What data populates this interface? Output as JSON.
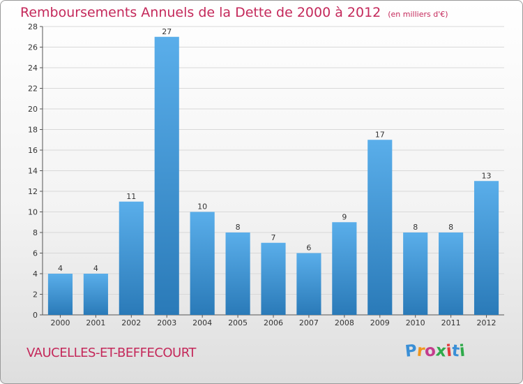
{
  "header": {
    "title": "Remboursements Annuels de la Dette de 2000 à 2012",
    "unit": "(en milliers d'€)"
  },
  "footer": {
    "commune": "VAUCELLES-ET-BEFFECOURT",
    "logo_letters": [
      "P",
      "r",
      "o",
      "x",
      "i",
      "t",
      "i"
    ],
    "logo_colors": [
      "#3a8fd6",
      "#f0961e",
      "#c43c8c",
      "#2faa4a",
      "#e4393c",
      "#3a8fd6",
      "#2faa4a"
    ]
  },
  "colors": {
    "bar_light": "#5aaeea",
    "bar_dark": "#2a7ab8",
    "title": "#c4285a",
    "grid": "#d8d8d8"
  },
  "chart_data": {
    "type": "bar",
    "title": "Remboursements Annuels de la Dette de 2000 à 2012",
    "subtitle": "(en milliers d'€)",
    "categories": [
      "2000",
      "2001",
      "2002",
      "2003",
      "2004",
      "2005",
      "2006",
      "2007",
      "2008",
      "2009",
      "2010",
      "2011",
      "2012"
    ],
    "values": [
      4,
      4,
      11,
      27,
      10,
      8,
      7,
      6,
      9,
      17,
      8,
      8,
      13
    ],
    "ylim": [
      0,
      28
    ],
    "yticks": [
      0,
      2,
      4,
      6,
      8,
      10,
      12,
      14,
      16,
      18,
      20,
      22,
      24,
      26,
      28
    ],
    "grid": true
  }
}
